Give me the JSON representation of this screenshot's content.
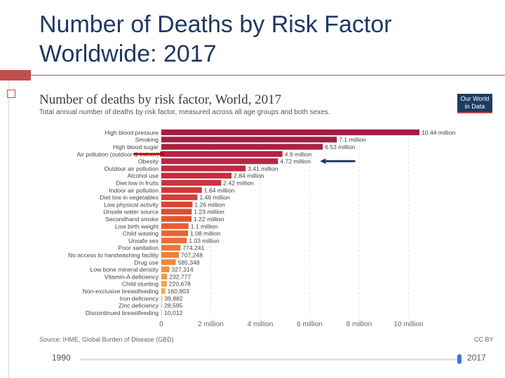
{
  "slide": {
    "title_line1": "Number of Deaths by Risk Factor",
    "title_line2": "Worldwide: 2017"
  },
  "card": {
    "title": "Number of deaths by risk factor, World, 2017",
    "subtitle": "Total annual number of deaths by risk factor, measured across all age groups and both sexes.",
    "logo_line1": "Our World",
    "logo_line2": "in Data",
    "source": "Source: IHME, Global Burden of Disease (GBD)",
    "license": "CC BY",
    "timeline_start": "1990",
    "timeline_end": "2017"
  },
  "chart_data": {
    "type": "bar",
    "orientation": "horizontal",
    "title": "Number of deaths by risk factor, World, 2017",
    "xlim": [
      0,
      10440000
    ],
    "xticks": [
      {
        "value": 0,
        "label": "0"
      },
      {
        "value": 2000000,
        "label": "2 million"
      },
      {
        "value": 4000000,
        "label": "4 million"
      },
      {
        "value": 6000000,
        "label": "6 million"
      },
      {
        "value": 8000000,
        "label": "8 million"
      },
      {
        "value": 10000000,
        "label": "10 million"
      }
    ],
    "bars": [
      {
        "category": "High blood pressure",
        "value": 10440000,
        "label": "10.44 million",
        "color": "#a11d42"
      },
      {
        "category": "Smoking",
        "value": 7100000,
        "label": "7.1 million",
        "color": "#a51f42"
      },
      {
        "category": "High blood sugar",
        "value": 6530000,
        "label": "6.53 million",
        "color": "#ab2143"
      },
      {
        "category": "Air pollution (outdoor & indoor)",
        "value": 4900000,
        "label": "4.9 million",
        "color": "#b22443"
      },
      {
        "category": "Obesity",
        "value": 4720000,
        "label": "4.72 million",
        "color": "#b82744"
      },
      {
        "category": "Outdoor air pollution",
        "value": 3410000,
        "label": "3.41 million",
        "color": "#c02a42"
      },
      {
        "category": "Alcohol use",
        "value": 2840000,
        "label": "2.84 million",
        "color": "#c62d40"
      },
      {
        "category": "Diet low in fruits",
        "value": 2420000,
        "label": "2.42 million",
        "color": "#cc323d"
      },
      {
        "category": "Indoor air pollution",
        "value": 1640000,
        "label": "1.64 million",
        "color": "#d1383b"
      },
      {
        "category": "Diet low in vegetables",
        "value": 1460000,
        "label": "1.46 million",
        "color": "#d63e38"
      },
      {
        "category": "Low physical activity",
        "value": 1260000,
        "label": "1.26 million",
        "color": "#db4536"
      },
      {
        "category": "Unsafe water source",
        "value": 1230000,
        "label": "1.23 million",
        "color": "#df4c35"
      },
      {
        "category": "Secondhand smoke",
        "value": 1220000,
        "label": "1.22 million",
        "color": "#e25436"
      },
      {
        "category": "Low birth weight",
        "value": 1100000,
        "label": "1.1 million",
        "color": "#e65c36"
      },
      {
        "category": "Child wasting",
        "value": 1080000,
        "label": "1.08 million",
        "color": "#e96437"
      },
      {
        "category": "Unsafe sex",
        "value": 1030000,
        "label": "1.03 million",
        "color": "#ec6c38"
      },
      {
        "category": "Poor sanitation",
        "value": 774241,
        "label": "774,241",
        "color": "#ee7539"
      },
      {
        "category": "No access to handwashing facility",
        "value": 707248,
        "label": "707,248",
        "color": "#f07e3b"
      },
      {
        "category": "Drug use",
        "value": 585348,
        "label": "585,348",
        "color": "#f2873d"
      },
      {
        "category": "Low bone mineral density",
        "value": 327314,
        "label": "327,314",
        "color": "#f4903f"
      },
      {
        "category": "Vitamin-A deficiency",
        "value": 232777,
        "label": "232,777",
        "color": "#f59a42"
      },
      {
        "category": "Child stunting",
        "value": 220678,
        "label": "220,678",
        "color": "#f6a345"
      },
      {
        "category": "Non-exclusive breastfeeding",
        "value": 160903,
        "label": "160,903",
        "color": "#f7ac49"
      },
      {
        "category": "Iron deficiency",
        "value": 39882,
        "label": "39,882",
        "color": "#f8b44e"
      },
      {
        "category": "Zinc deficiency",
        "value": 28595,
        "label": "28,595",
        "color": "#f9bc53"
      },
      {
        "category": "Discontinued breastfeeding",
        "value": 10012,
        "label": "10,012",
        "color": "#f9c459"
      }
    ],
    "grid": true,
    "annotations": [
      {
        "type": "arrow",
        "target": "Air pollution (outdoor & indoor)",
        "color": "#c00000",
        "pointing": "right"
      },
      {
        "type": "arrow",
        "target": "Obesity",
        "color": "#1f3864",
        "pointing": "left"
      }
    ]
  }
}
